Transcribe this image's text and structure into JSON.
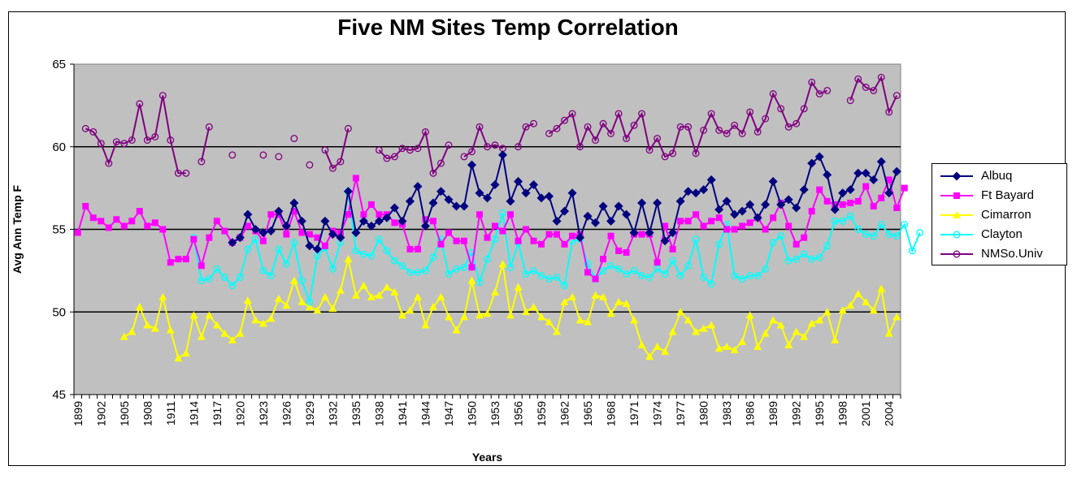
{
  "chart_data": {
    "type": "line",
    "title": "Five NM Sites Temp Correlation",
    "xlabel": "Years",
    "ylabel": "Avg Ann Temp F",
    "xlim": [
      1899,
      2005
    ],
    "ylim": [
      45,
      65
    ],
    "yticks": [
      "45",
      "50",
      "55",
      "60",
      "65"
    ],
    "xticks": [
      "1899",
      "1902",
      "1905",
      "1908",
      "1911",
      "1914",
      "1917",
      "1920",
      "1923",
      "1926",
      "1929",
      "1932",
      "1935",
      "1938",
      "1941",
      "1944",
      "1947",
      "1950",
      "1953",
      "1956",
      "1959",
      "1962",
      "1965",
      "1968",
      "1971",
      "1974",
      "1977",
      "1980",
      "1983",
      "1986",
      "1989",
      "1992",
      "1995",
      "1998",
      "2001",
      "2004"
    ],
    "grid": "major horizontal at 50, 55, 60",
    "plot_background": "#c0c0c0",
    "legend_position": "right",
    "series": [
      {
        "name": "Albuq",
        "color": "#000080",
        "marker": "diamond",
        "start_year": 1919,
        "values": [
          54.2,
          54.5,
          55.9,
          55.0,
          54.8,
          54.9,
          56.1,
          55.2,
          56.6,
          55.5,
          54.0,
          53.8,
          55.5,
          54.7,
          54.5,
          57.3,
          54.8,
          55.5,
          55.2,
          55.5,
          55.7,
          56.3,
          55.5,
          56.7,
          57.6,
          55.2,
          56.6,
          57.3,
          56.8,
          56.4,
          56.4,
          58.9,
          57.2,
          56.9,
          57.7,
          59.5,
          56.7,
          57.9,
          57.2,
          57.7,
          56.9,
          57.0,
          55.5,
          56.1,
          57.2,
          54.5,
          55.8,
          55.4,
          56.4,
          55.5,
          56.4,
          55.9,
          54.8,
          56.6,
          54.8,
          56.6,
          54.3,
          54.8,
          56.7,
          57.3,
          57.2,
          57.4,
          58.0,
          56.2,
          56.7,
          55.9,
          56.1,
          56.5,
          55.7,
          56.5,
          57.9,
          56.5,
          56.8,
          56.3,
          57.4,
          59.0,
          59.4,
          58.3,
          56.2,
          57.2,
          57.4,
          58.4,
          58.4,
          58.0,
          59.1,
          57.2,
          58.5
        ]
      },
      {
        "name": "Ft Bayard",
        "color": "#ff00ff",
        "marker": "square",
        "start_year": 1899,
        "values": [
          54.8,
          56.4,
          55.7,
          55.5,
          55.1,
          55.6,
          55.2,
          55.5,
          56.1,
          55.2,
          55.4,
          55.0,
          53.0,
          53.2,
          53.2,
          54.4,
          52.8,
          54.5,
          55.5,
          54.9,
          54.2,
          54.5,
          55.2,
          54.9,
          54.3,
          55.9,
          55.9,
          54.7,
          56.1,
          54.8,
          54.7,
          54.5,
          54.0,
          54.9,
          54.8,
          55.9,
          58.1,
          55.9,
          56.5,
          55.9,
          55.9,
          55.4,
          55.3,
          53.8,
          53.8,
          55.6,
          55.5,
          54.1,
          54.8,
          54.3,
          54.3,
          52.7,
          55.9,
          54.5,
          55.2,
          54.9,
          55.9,
          54.3,
          55.0,
          54.3,
          54.1,
          54.7,
          54.7,
          54.1,
          54.6,
          54.7,
          52.4,
          52.0,
          53.2,
          54.6,
          53.7,
          53.6,
          54.7,
          54.7,
          54.7,
          53.0,
          55.2,
          53.8,
          55.5,
          55.5,
          55.9,
          55.2,
          55.5,
          55.7,
          55.0,
          55.0,
          55.2,
          55.4,
          55.7,
          55.0,
          55.7,
          56.6,
          55.2,
          54.1,
          54.5,
          56.1,
          57.4,
          56.7,
          56.5,
          56.5,
          56.6,
          56.7,
          57.6,
          56.4,
          56.9,
          58.0,
          56.3,
          57.5
        ]
      },
      {
        "name": "Cimarron",
        "color": "#ffff00",
        "marker": "triangle",
        "start_year": 1905,
        "values": [
          48.5,
          48.8,
          50.3,
          49.2,
          49.0,
          50.9,
          48.9,
          47.2,
          47.5,
          49.8,
          48.5,
          49.8,
          49.2,
          48.7,
          48.3,
          48.7,
          50.7,
          49.5,
          49.3,
          49.6,
          50.8,
          50.4,
          51.9,
          50.6,
          50.3,
          50.1,
          50.9,
          50.2,
          51.3,
          53.2,
          51.0,
          51.6,
          50.9,
          51.0,
          51.5,
          51.2,
          49.8,
          50.1,
          50.9,
          49.2,
          50.3,
          50.9,
          49.7,
          48.9,
          49.7,
          51.9,
          49.8,
          49.9,
          51.2,
          52.9,
          49.8,
          51.5,
          50.0,
          50.3,
          49.7,
          49.4,
          48.8,
          50.6,
          50.9,
          49.5,
          49.4,
          51.0,
          50.9,
          49.9,
          50.6,
          50.5,
          49.5,
          48.0,
          47.3,
          47.9,
          47.6,
          48.8,
          50.0,
          49.5,
          48.8,
          49.0,
          49.2,
          47.8,
          47.9,
          47.7,
          48.2,
          49.8,
          47.9,
          48.7,
          49.5,
          49.2,
          48.0,
          48.8,
          48.5,
          49.3,
          49.5,
          50.0,
          48.3,
          50.1,
          50.4,
          51.1,
          50.6,
          50.1,
          51.4,
          48.7,
          49.7
        ]
      },
      {
        "name": "Clayton",
        "color": "#00ffff",
        "marker": "circle",
        "start_year": 1914,
        "values": [
          54.5,
          51.9,
          52.0,
          52.6,
          52.1,
          51.6,
          52.1,
          53.8,
          54.4,
          52.5,
          52.2,
          53.8,
          52.9,
          54.2,
          51.9,
          50.6,
          53.4,
          53.9,
          52.6,
          54.2,
          57.3,
          53.7,
          53.5,
          53.4,
          54.4,
          53.7,
          53.1,
          52.8,
          52.4,
          52.4,
          52.5,
          53.3,
          54.4,
          52.3,
          52.6,
          52.7,
          53.6,
          51.8,
          53.2,
          54.4,
          56.0,
          52.7,
          54.2,
          52.3,
          52.5,
          52.2,
          52.0,
          52.1,
          51.6,
          54.3,
          54.4,
          52.9,
          52.0,
          52.5,
          52.8,
          52.6,
          52.3,
          52.5,
          52.2,
          52.1,
          52.6,
          52.3,
          53.1,
          52.2,
          52.8,
          54.4,
          52.1,
          51.7,
          54.1,
          55.3,
          52.2,
          52.0,
          52.2,
          52.2,
          52.6,
          54.2,
          54.6,
          53.1,
          53.2,
          53.5,
          53.2,
          53.3,
          54.0,
          55.5,
          55.5,
          55.8,
          55.0,
          54.7,
          54.6,
          55.3,
          54.7,
          54.6,
          55.3,
          53.7,
          54.8
        ]
      },
      {
        "name": "NMSo.Univ",
        "color": "#800080",
        "marker": "circle",
        "start_year": 1899,
        "values": [
          null,
          61.1,
          60.9,
          60.2,
          59.0,
          60.3,
          60.2,
          60.4,
          62.6,
          60.4,
          60.6,
          63.1,
          60.4,
          58.4,
          58.4,
          null,
          59.1,
          61.2,
          null,
          null,
          59.5,
          null,
          null,
          null,
          59.5,
          null,
          59.4,
          null,
          60.5,
          null,
          58.9,
          null,
          59.8,
          58.7,
          59.1,
          61.1,
          null,
          null,
          null,
          59.8,
          59.3,
          59.4,
          59.9,
          59.8,
          59.9,
          60.9,
          58.4,
          59.0,
          60.1,
          null,
          59.4,
          59.7,
          61.2,
          60.0,
          60.1,
          59.9,
          null,
          60.0,
          61.2,
          61.4,
          null,
          60.8,
          61.1,
          61.6,
          62.0,
          60.0,
          61.2,
          60.4,
          61.4,
          60.8,
          62.0,
          60.5,
          61.3,
          62.0,
          59.8,
          60.5,
          59.4,
          59.6,
          61.2,
          61.2,
          59.6,
          61.0,
          62.0,
          61.0,
          60.8,
          61.3,
          60.8,
          62.1,
          60.9,
          61.7,
          63.2,
          62.3,
          61.2,
          61.4,
          62.3,
          63.9,
          63.2,
          63.4,
          null,
          null,
          62.8,
          64.1,
          63.6,
          63.4,
          64.2,
          62.1,
          63.1
        ]
      }
    ]
  }
}
